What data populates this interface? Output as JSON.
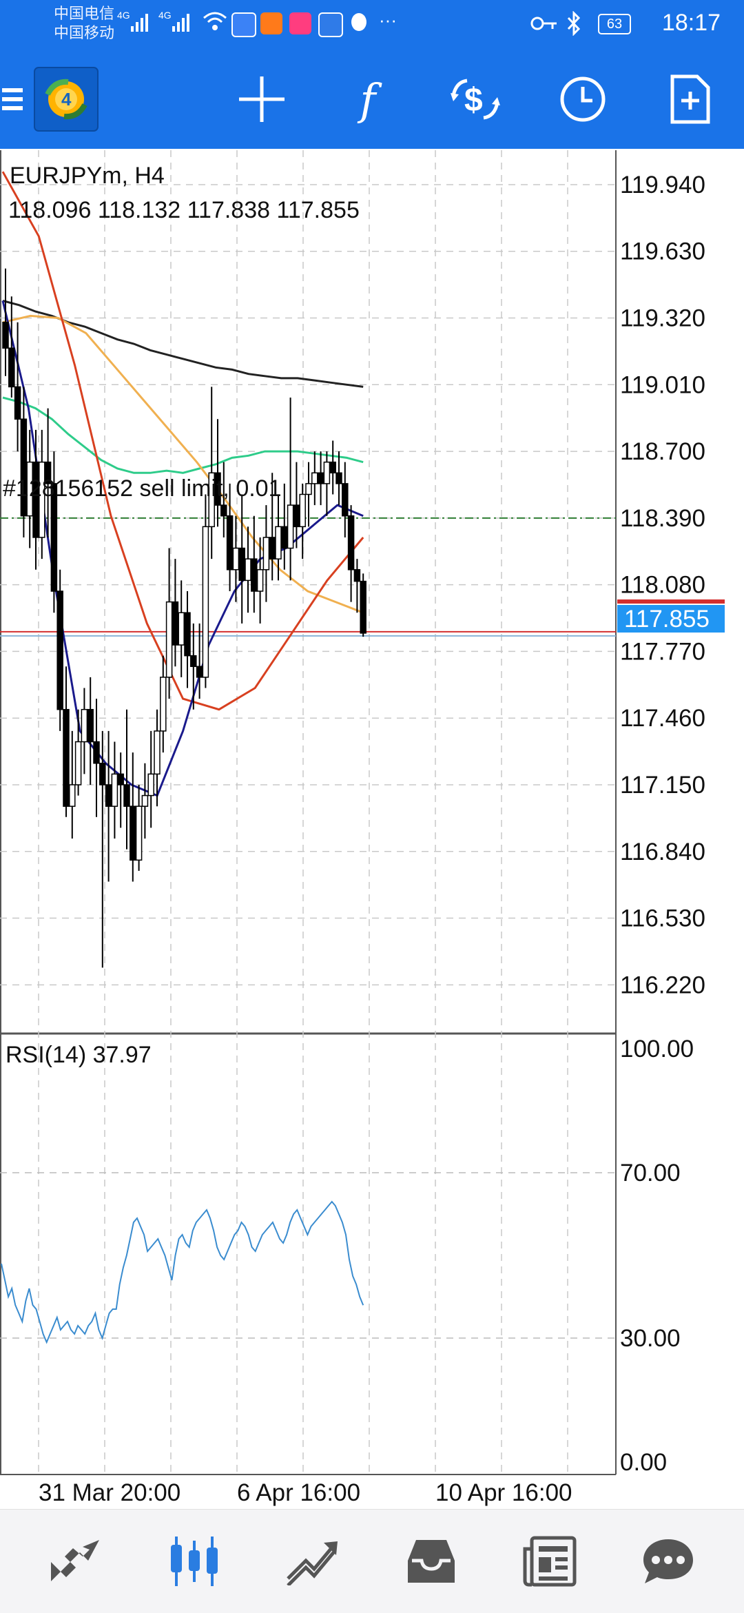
{
  "status_bar": {
    "carrier_1": "中国电信",
    "carrier_2": "中国移动",
    "network_1": "4G",
    "network_2": "4G",
    "more": "···",
    "battery": "63",
    "time": "18:17"
  },
  "toolbar": {
    "menu_icon": "menu-icon",
    "app_logo": "mt4-logo",
    "crosshair": "crosshair-icon",
    "indicators": "f",
    "symbol_change": "currency-exchange-icon",
    "timeframe": "clock-icon",
    "new_order": "new-order-icon"
  },
  "chart": {
    "symbol": "EURJPYm, H4",
    "ohlc": "118.096 118.132 117.838 117.855",
    "order_label": "#128156152 sell limit, 0.01",
    "current_price": "117.855",
    "price_axis": [
      "119.940",
      "119.630",
      "119.320",
      "119.010",
      "118.700",
      "118.390",
      "118.080",
      "117.770",
      "117.460",
      "117.150",
      "116.840",
      "116.530",
      "116.220"
    ],
    "rsi_label": "RSI(14) 37.97",
    "rsi_axis": [
      "100.00",
      "70.00",
      "30.00",
      "0.00"
    ],
    "time_axis": [
      "31 Mar 20:00",
      "6 Apr 16:00",
      "10 Apr 16:00"
    ],
    "colors": {
      "up_candle": "#ffffff",
      "down_candle": "#000000",
      "ma_black": "#222222",
      "ma_green": "#2ecc8a",
      "ma_orange": "#f0b050",
      "ma_red": "#d84020",
      "ma_navy": "#1a1a8c",
      "rsi_line": "#3a8ccf",
      "current_price_bg": "#2196f3",
      "ask_line": "#d32f2f"
    }
  },
  "chart_data": {
    "type": "candlestick",
    "symbol": "EURJPYm",
    "timeframe": "H4",
    "ylim": [
      116.0,
      120.1
    ],
    "candles": [
      [
        119.3,
        119.55,
        119.05,
        119.18
      ],
      [
        119.18,
        119.42,
        118.95,
        119.0
      ],
      [
        119.0,
        119.3,
        118.7,
        118.85
      ],
      [
        118.85,
        119.0,
        118.3,
        118.4
      ],
      [
        118.4,
        118.8,
        118.25,
        118.65
      ],
      [
        118.65,
        118.8,
        118.15,
        118.3
      ],
      [
        118.3,
        118.8,
        118.2,
        118.65
      ],
      [
        118.65,
        118.9,
        118.3,
        118.55
      ],
      [
        118.55,
        118.7,
        117.95,
        118.05
      ],
      [
        118.05,
        118.15,
        117.4,
        117.5
      ],
      [
        117.5,
        117.7,
        117.0,
        117.05
      ],
      [
        117.05,
        117.4,
        116.9,
        117.15
      ],
      [
        117.15,
        117.5,
        117.1,
        117.35
      ],
      [
        117.35,
        117.6,
        117.2,
        117.5
      ],
      [
        117.5,
        117.65,
        117.15,
        117.35
      ],
      [
        117.35,
        117.55,
        117.0,
        117.25
      ],
      [
        117.25,
        117.4,
        116.3,
        117.15
      ],
      [
        117.15,
        117.4,
        116.7,
        117.05
      ],
      [
        117.05,
        117.35,
        116.9,
        117.2
      ],
      [
        117.2,
        117.3,
        116.95,
        117.15
      ],
      [
        117.15,
        117.5,
        116.85,
        117.05
      ],
      [
        117.05,
        117.3,
        116.7,
        116.8
      ],
      [
        116.8,
        117.15,
        116.75,
        117.05
      ],
      [
        117.05,
        117.25,
        116.9,
        117.1
      ],
      [
        117.1,
        117.4,
        116.95,
        117.2
      ],
      [
        117.2,
        117.5,
        117.05,
        117.4
      ],
      [
        117.4,
        117.75,
        117.3,
        117.65
      ],
      [
        117.65,
        118.25,
        117.55,
        118.0
      ],
      [
        118.0,
        118.2,
        117.7,
        117.8
      ],
      [
        117.8,
        118.1,
        117.65,
        117.95
      ],
      [
        117.95,
        118.05,
        117.6,
        117.75
      ],
      [
        117.75,
        117.9,
        117.5,
        117.7
      ],
      [
        117.7,
        117.9,
        117.55,
        117.65
      ],
      [
        117.65,
        118.5,
        117.6,
        118.35
      ],
      [
        118.35,
        119.0,
        118.2,
        118.6
      ],
      [
        118.6,
        118.85,
        118.35,
        118.45
      ],
      [
        118.45,
        118.65,
        118.3,
        118.4
      ],
      [
        118.4,
        118.55,
        118.05,
        118.15
      ],
      [
        118.15,
        118.4,
        118.0,
        118.25
      ],
      [
        118.25,
        118.5,
        117.9,
        118.1
      ],
      [
        118.1,
        118.35,
        117.95,
        118.2
      ],
      [
        118.2,
        118.4,
        117.95,
        118.05
      ],
      [
        118.05,
        118.3,
        117.9,
        118.15
      ],
      [
        118.15,
        118.45,
        118.0,
        118.3
      ],
      [
        118.3,
        118.6,
        118.1,
        118.2
      ],
      [
        118.2,
        118.5,
        118.1,
        118.35
      ],
      [
        118.35,
        118.55,
        118.15,
        118.25
      ],
      [
        118.25,
        118.95,
        118.1,
        118.45
      ],
      [
        118.45,
        118.65,
        118.25,
        118.35
      ],
      [
        118.35,
        118.55,
        118.2,
        118.5
      ],
      [
        118.5,
        118.65,
        118.35,
        118.55
      ],
      [
        118.55,
        118.7,
        118.45,
        118.6
      ],
      [
        118.6,
        118.7,
        118.45,
        118.55
      ],
      [
        118.55,
        118.7,
        118.4,
        118.65
      ],
      [
        118.65,
        118.75,
        118.5,
        118.6
      ],
      [
        118.6,
        118.7,
        118.45,
        118.55
      ],
      [
        118.55,
        118.65,
        118.3,
        118.4
      ],
      [
        118.4,
        118.45,
        118.0,
        118.15
      ],
      [
        118.15,
        118.2,
        117.95,
        118.096
      ],
      [
        118.096,
        118.132,
        117.838,
        117.855
      ]
    ],
    "ma_black": [
      119.4,
      119.38,
      119.35,
      119.33,
      119.3,
      119.28,
      119.25,
      119.22,
      119.2,
      119.17,
      119.15,
      119.13,
      119.11,
      119.09,
      119.08,
      119.06,
      119.05,
      119.04,
      119.04,
      119.03,
      119.02,
      119.01,
      119.0
    ],
    "ma_green": [
      118.95,
      118.93,
      118.9,
      118.85,
      118.78,
      118.72,
      118.66,
      118.62,
      118.6,
      118.6,
      118.61,
      118.6,
      118.62,
      118.64,
      118.67,
      118.68,
      118.7,
      118.7,
      118.7,
      118.69,
      118.68,
      118.67,
      118.65
    ],
    "ma_orange": [
      119.3,
      119.33,
      119.32,
      119.25,
      119.1,
      118.95,
      118.8,
      118.65,
      118.48,
      118.3,
      118.15,
      118.05,
      118.0,
      117.95
    ],
    "ma_red": [
      120.0,
      119.7,
      119.1,
      118.4,
      117.9,
      117.55,
      117.5,
      117.6,
      117.85,
      118.1,
      118.3
    ],
    "ma_navy": [
      119.4,
      118.9,
      118.1,
      117.4,
      117.25,
      117.15,
      117.1,
      117.4,
      117.8,
      118.05,
      118.2,
      118.25,
      118.35,
      118.45,
      118.4
    ],
    "order_price": 118.39,
    "current_price": 117.855,
    "rsi": {
      "label": "RSI(14)",
      "value": 37.97,
      "ylim": [
        0,
        100
      ],
      "levels": [
        30,
        70
      ],
      "values": [
        48,
        44,
        40,
        42,
        38,
        36,
        34,
        39,
        42,
        38,
        37,
        34,
        31,
        29,
        31,
        33,
        35,
        32,
        33,
        34,
        32,
        31,
        33,
        32,
        31,
        33,
        34,
        36,
        32,
        30,
        33,
        36,
        37,
        37,
        43,
        47,
        50,
        54,
        58,
        59,
        57,
        55,
        51,
        52,
        53,
        54,
        52,
        50,
        47,
        44,
        50,
        54,
        55,
        53,
        52,
        56,
        58,
        59,
        60,
        61,
        59,
        56,
        52,
        50,
        49,
        51,
        53,
        55,
        56,
        58,
        57,
        55,
        52,
        51,
        53,
        55,
        56,
        57,
        58,
        56,
        54,
        53,
        55,
        58,
        60,
        61,
        59,
        57,
        55,
        57,
        58,
        59,
        60,
        61,
        62,
        63,
        62,
        60,
        58,
        55,
        49,
        45,
        43,
        40,
        37.97
      ]
    },
    "xlabels": [
      "31 Mar 20:00",
      "6 Apr 16:00",
      "10 Apr 16:00"
    ]
  },
  "bottom_nav": {
    "quotes": "quotes-icon",
    "chart": "chart-icon",
    "trade": "trade-icon",
    "history": "history-icon",
    "news": "news-icon",
    "chat": "chat-icon"
  }
}
